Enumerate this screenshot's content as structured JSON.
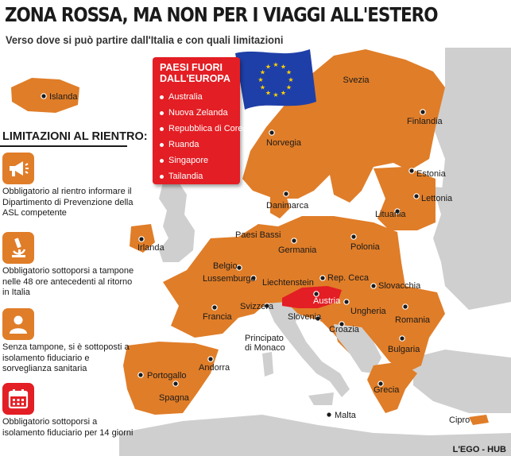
{
  "header": {
    "title": "ZONA ROSSA, MA NON PER I VIAGGI ALL'ESTERO",
    "subtitle": "Verso dove si può partire dall'Italia e con quali limitazioni"
  },
  "non_eu": {
    "title": "PAESI FUORI DALL'EUROPA",
    "countries": [
      "Australia",
      "Nuova Zelanda",
      "Repubblica di Corea",
      "Ruanda",
      "Singapore",
      "Tailandia"
    ]
  },
  "limitations": {
    "title": "LIMITAZIONI AL RIENTRO:",
    "items": [
      {
        "icon": "megaphone-icon",
        "text": "Obbligatorio al rientro informare il Dipartimento di Prevenzione della ASL competente"
      },
      {
        "icon": "microscope-icon",
        "text": "Obbligatorio sottoporsi a tampone nelle 48 ore antecedenti al ritorno in Italia"
      },
      {
        "icon": "person-icon",
        "text": "Senza tampone, si è sottoposti a isolamento fiduciario e sorveglianza sanitaria"
      },
      {
        "icon": "calendar-icon",
        "text": "Obbligatorio sottoporsi a isolamento fiduciario per 14 giorni"
      }
    ]
  },
  "map": {
    "highlight_label": "Austria",
    "places": [
      {
        "id": "islanda",
        "name": "Islanda"
      },
      {
        "id": "svezia",
        "name": "Svezia"
      },
      {
        "id": "finlandia",
        "name": "Finlandia"
      },
      {
        "id": "norvegia",
        "name": "Norvegia"
      },
      {
        "id": "estonia",
        "name": "Estonia"
      },
      {
        "id": "lettonia",
        "name": "Lettonia"
      },
      {
        "id": "lituania",
        "name": "Lituania"
      },
      {
        "id": "danimarca",
        "name": "Danimarca"
      },
      {
        "id": "paesi-bassi",
        "name": "Paesi Bassi"
      },
      {
        "id": "irlanda",
        "name": "Irlanda"
      },
      {
        "id": "germania",
        "name": "Germania"
      },
      {
        "id": "polonia",
        "name": "Polonia"
      },
      {
        "id": "belgio",
        "name": "Belgio"
      },
      {
        "id": "lussemburgo",
        "name": "Lussemburgo"
      },
      {
        "id": "liechtenstein",
        "name": "Liechtenstein"
      },
      {
        "id": "rep-ceca",
        "name": "Rep. Ceca"
      },
      {
        "id": "slovacchia",
        "name": "Slovacchia"
      },
      {
        "id": "svizzera",
        "name": "Svizzera"
      },
      {
        "id": "slovenia",
        "name": "Slovenia"
      },
      {
        "id": "ungheria",
        "name": "Ungheria"
      },
      {
        "id": "francia",
        "name": "Francia"
      },
      {
        "id": "romania",
        "name": "Romania"
      },
      {
        "id": "croazia",
        "name": "Croazia"
      },
      {
        "id": "principato-di-monaco",
        "name": "Principato di Monaco"
      },
      {
        "id": "bulgaria",
        "name": "Bulgaria"
      },
      {
        "id": "andorra",
        "name": "Andorra"
      },
      {
        "id": "portogallo",
        "name": "Portogallo"
      },
      {
        "id": "spagna",
        "name": "Spagna"
      },
      {
        "id": "grecia",
        "name": "Grecia"
      },
      {
        "id": "malta",
        "name": "Malta"
      },
      {
        "id": "cipro",
        "name": "Cipro"
      }
    ]
  },
  "colors": {
    "allowed": "#e07d28",
    "non_allowed": "#cfcfcf",
    "sea": "#ffffff",
    "highlight": "#e31e24",
    "eu_flag": "#1f3fa8",
    "eu_stars": "#ffd200",
    "icon_orange": "#e07d28",
    "icon_red": "#e31e24"
  },
  "credit": "L'EGO - HUB"
}
